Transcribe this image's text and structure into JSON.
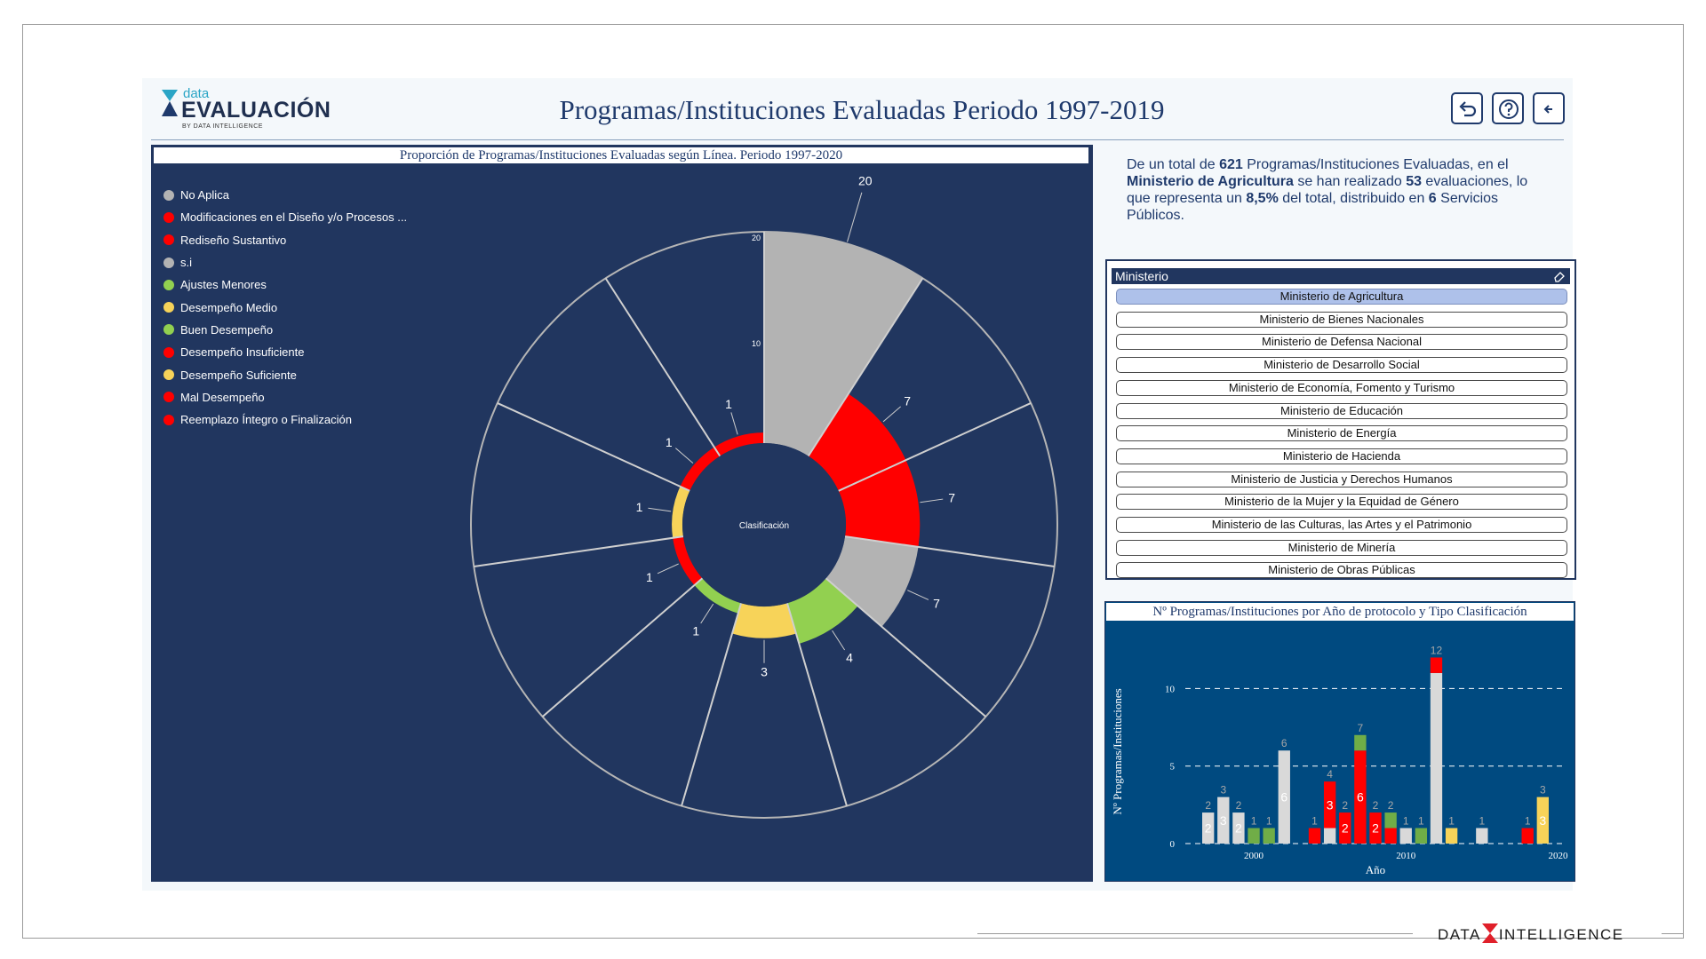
{
  "header": {
    "logo_top": "data",
    "logo_main": "EVALUACIÓN",
    "logo_by": "BY DATA INTELLIGENCE",
    "title": "Programas/Instituciones Evaluadas Periodo 1997-2019",
    "buttons": [
      "back-arrow-icon",
      "help-icon",
      "left-arrow-icon"
    ]
  },
  "radial_chart": {
    "title": "Proporción de Programas/Instituciones Evaluadas según Línea. Periodo 1997-2020",
    "center_label": "Clasificación",
    "legend": [
      {
        "label": "No Aplica",
        "color": "#b3b3b3"
      },
      {
        "label": "Modificaciones en el Diseño y/o Procesos ...",
        "color": "#ff0000"
      },
      {
        "label": "Rediseño Sustantivo",
        "color": "#ff0000"
      },
      {
        "label": "s.i",
        "color": "#b3b3b3"
      },
      {
        "label": "Ajustes Menores",
        "color": "#92d050"
      },
      {
        "label": "Desempeño Medio",
        "color": "#f7d359"
      },
      {
        "label": "Buen Desempeño",
        "color": "#92d050"
      },
      {
        "label": "Desempeño Insuficiente",
        "color": "#ff0000"
      },
      {
        "label": "Desempeño Suficiente",
        "color": "#f7d359"
      },
      {
        "label": "Mal Desempeño",
        "color": "#ff0000"
      },
      {
        "label": "Reemplazo Íntegro o Finalización",
        "color": "#ff0000"
      }
    ],
    "axis_ticks": [
      "20",
      "10"
    ]
  },
  "chart_data": [
    {
      "type": "pie",
      "title": "Proporción de Programas/Instituciones Evaluadas según Línea. Periodo 1997-2020",
      "categories": [
        "No Aplica",
        "Modificaciones en el Diseño y/o Procesos ...",
        "Rediseño Sustantivo",
        "s.i",
        "Ajustes Menores",
        "Desempeño Medio",
        "Buen Desempeño",
        "Desempeño Insuficiente",
        "Desempeño Suficiente",
        "Mal Desempeño",
        "Reemplazo Íntegro o Finalización"
      ],
      "values": [
        20,
        7,
        7,
        7,
        4,
        3,
        1,
        1,
        1,
        1,
        1
      ],
      "colors": [
        "#b3b3b3",
        "#ff0000",
        "#ff0000",
        "#b3b3b3",
        "#92d050",
        "#f7d359",
        "#92d050",
        "#ff0000",
        "#f7d359",
        "#ff0000",
        "#ff0000"
      ],
      "rmax": 20
    },
    {
      "type": "bar",
      "title": "Nº Programas/Instituciones por Año de protocolo y Tipo Clasificación",
      "xlabel": "Año",
      "ylabel": "Nº Programas/Instituciones",
      "x_ticks": [
        "2000",
        "2010",
        "2020"
      ],
      "y_ticks": [
        "0",
        "5",
        "10"
      ],
      "ylim": [
        0,
        13
      ],
      "xlim": [
        1995.5,
        2020.5
      ],
      "stacked": true,
      "bars": [
        {
          "year": 1997,
          "total": 2,
          "segments": [
            {
              "v": 2,
              "c": "#d9d9d9",
              "label": "2"
            }
          ]
        },
        {
          "year": 1998,
          "total": 3,
          "segments": [
            {
              "v": 3,
              "c": "#d9d9d9",
              "label": "3"
            }
          ]
        },
        {
          "year": 1999,
          "total": 2,
          "segments": [
            {
              "v": 2,
              "c": "#d9d9d9",
              "label": "2"
            }
          ]
        },
        {
          "year": 2000,
          "total": 1,
          "segments": [
            {
              "v": 1,
              "c": "#70ad47",
              "label": ""
            }
          ]
        },
        {
          "year": 2001,
          "total": 1,
          "segments": [
            {
              "v": 1,
              "c": "#70ad47",
              "label": ""
            }
          ]
        },
        {
          "year": 2002,
          "total": 6,
          "segments": [
            {
              "v": 6,
              "c": "#d9d9d9",
              "label": "6"
            }
          ]
        },
        {
          "year": 2004,
          "total": 1,
          "segments": [
            {
              "v": 1,
              "c": "#ff0000",
              "label": ""
            }
          ]
        },
        {
          "year": 2005,
          "total": 4,
          "segments": [
            {
              "v": 1,
              "c": "#d9d9d9",
              "label": ""
            },
            {
              "v": 3,
              "c": "#ff0000",
              "label": "3"
            }
          ]
        },
        {
          "year": 2006,
          "total": 2,
          "segments": [
            {
              "v": 2,
              "c": "#ff0000",
              "label": "2"
            }
          ]
        },
        {
          "year": 2007,
          "total": 7,
          "segments": [
            {
              "v": 6,
              "c": "#ff0000",
              "label": "6"
            },
            {
              "v": 1,
              "c": "#70ad47",
              "label": ""
            }
          ]
        },
        {
          "year": 2008,
          "total": 2,
          "segments": [
            {
              "v": 2,
              "c": "#ff0000",
              "label": "2"
            }
          ]
        },
        {
          "year": 2009,
          "total": 2,
          "segments": [
            {
              "v": 1,
              "c": "#ff0000",
              "label": ""
            },
            {
              "v": 1,
              "c": "#70ad47",
              "label": ""
            }
          ]
        },
        {
          "year": 2010,
          "total": 1,
          "segments": [
            {
              "v": 1,
              "c": "#d9d9d9",
              "label": ""
            }
          ]
        },
        {
          "year": 2011,
          "total": 1,
          "segments": [
            {
              "v": 1,
              "c": "#70ad47",
              "label": ""
            }
          ]
        },
        {
          "year": 2012,
          "total": 12,
          "segments": [
            {
              "v": 11,
              "c": "#d9d9d9",
              "label": ""
            },
            {
              "v": 1,
              "c": "#ff0000",
              "label": ""
            }
          ]
        },
        {
          "year": 2013,
          "total": 1,
          "segments": [
            {
              "v": 1,
              "c": "#f7d359",
              "label": ""
            }
          ]
        },
        {
          "year": 2015,
          "total": 1,
          "segments": [
            {
              "v": 1,
              "c": "#d9d9d9",
              "label": ""
            }
          ]
        },
        {
          "year": 2018,
          "total": 1,
          "segments": [
            {
              "v": 1,
              "c": "#ff0000",
              "label": ""
            }
          ]
        },
        {
          "year": 2019,
          "total": 3,
          "segments": [
            {
              "v": 3,
              "c": "#f7d359",
              "label": "3"
            }
          ]
        }
      ]
    }
  ],
  "summary": {
    "p1": "De un total de ",
    "total": "621",
    "p2": " Programas/Instituciones Evaluadas, en el ",
    "ministry": "Ministerio de Agricultura",
    "p3": " se han realizado ",
    "count": "53",
    "p4": " evaluaciones, lo que representa un ",
    "pct": "8,5%",
    "p5": " del total, distribuido en ",
    "services": "6",
    "p6": " Servicios Públicos."
  },
  "slicer": {
    "header": "Ministerio",
    "items": [
      {
        "label": "Ministerio de Agricultura",
        "selected": true
      },
      {
        "label": "Ministerio de Bienes Nacionales",
        "selected": false
      },
      {
        "label": "Ministerio de Defensa Nacional",
        "selected": false
      },
      {
        "label": "Ministerio de Desarrollo Social",
        "selected": false
      },
      {
        "label": "Ministerio de Economía, Fomento y Turismo",
        "selected": false
      },
      {
        "label": "Ministerio de Educación",
        "selected": false
      },
      {
        "label": "Ministerio de Energía",
        "selected": false
      },
      {
        "label": "Ministerio de Hacienda",
        "selected": false
      },
      {
        "label": "Ministerio de Justicia y Derechos Humanos",
        "selected": false
      },
      {
        "label": "Ministerio de la Mujer y la Equidad de Género",
        "selected": false
      },
      {
        "label": "Ministerio de las Culturas, las Artes y el Patrimonio",
        "selected": false
      },
      {
        "label": "Ministerio de Minería",
        "selected": false
      },
      {
        "label": "Ministerio de Obras Públicas",
        "selected": false
      }
    ]
  },
  "footer": {
    "logo_left": "DATA",
    "logo_right": "INTELLIGENCE"
  }
}
